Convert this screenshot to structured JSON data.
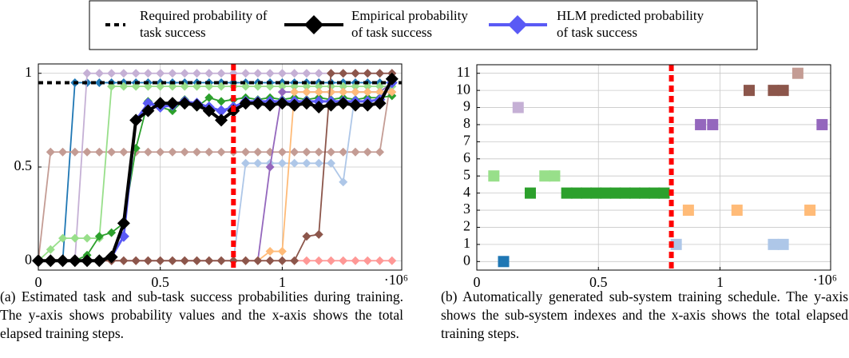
{
  "chart_data": [
    {
      "type": "line",
      "caption": "(a) Estimated task and sub-task success probabilities during training. The y-axis shows probability values and the x-axis shows the total elapsed training steps.",
      "x_multiplier": "·10⁶",
      "xlim": [
        0,
        1490000
      ],
      "ylim": [
        -0.05,
        1.05
      ],
      "xticks": [
        0,
        {
          "value": 500000,
          "label": "0.5"
        },
        {
          "value": 1000000,
          "label": "1"
        }
      ],
      "yticks": [
        0,
        0.5,
        1
      ],
      "grid": true,
      "vline": 800000,
      "vline_color": "#ff0000",
      "x": [
        0,
        50000,
        100000,
        150000,
        200000,
        250000,
        300000,
        350000,
        400000,
        450000,
        500000,
        550000,
        600000,
        650000,
        700000,
        750000,
        800000,
        850000,
        900000,
        950000,
        1000000,
        1050000,
        1100000,
        1150000,
        1200000,
        1250000,
        1300000,
        1350000,
        1400000,
        1450000
      ],
      "series": [
        {
          "name": "Required probability of task success",
          "color": "#000000",
          "linestyle": "dashed",
          "x": [
            0,
            1490000
          ],
          "values": [
            0.95,
            0.95
          ]
        },
        {
          "name": "Empirical probability of task success",
          "color": "#000000",
          "marker": "diamond",
          "values": [
            0,
            0,
            0,
            0,
            0,
            0,
            0.02,
            0.2,
            0.75,
            0.8,
            0.84,
            0.84,
            0.84,
            0.83,
            0.8,
            0.75,
            0.8,
            0.84,
            0.84,
            0.83,
            0.84,
            0.83,
            0.84,
            0.82,
            0.83,
            0.84,
            0.83,
            0.83,
            0.84,
            0.97
          ]
        },
        {
          "name": "HLM predicted probability of task success",
          "color": "#5a5af5",
          "marker": "diamond",
          "values": [
            0,
            0,
            0,
            0,
            0,
            0,
            0.02,
            0.13,
            0.75,
            0.84,
            0.82,
            0.83,
            0.85,
            0.84,
            0.82,
            0.8,
            0.82,
            0.85,
            0.85,
            0.85,
            0.85,
            0.85,
            0.85,
            0.85,
            0.85,
            0.85,
            0.85,
            0.85,
            0.86,
            0.95
          ]
        },
        {
          "color": "#ff9896",
          "marker": "diamond",
          "values": [
            0,
            0,
            0,
            0,
            0,
            0,
            0,
            0,
            0,
            0,
            0,
            0,
            0,
            0,
            0,
            0,
            0,
            0,
            0,
            0,
            0,
            0,
            0,
            0,
            0,
            0,
            0,
            0,
            0,
            0
          ]
        },
        {
          "color": "#1f77b4",
          "marker": "diamond",
          "values": [
            0,
            0,
            0,
            0.95,
            0.95,
            0.95,
            0.95,
            0.95,
            0.95,
            0.95,
            0.95,
            0.95,
            0.95,
            0.95,
            0.95,
            0.95,
            0.95,
            0.95,
            0.95,
            0.95,
            0.95,
            0.95,
            0.95,
            0.95,
            0.95,
            0.95,
            0.95,
            0.95,
            0.95,
            0.95
          ]
        },
        {
          "color": "#c49c94",
          "marker": "diamond",
          "values": [
            0,
            0.58,
            0.58,
            0.58,
            0.58,
            0.58,
            0.58,
            0.58,
            0.58,
            0.58,
            0.58,
            0.58,
            0.58,
            0.58,
            0.58,
            0.58,
            0.58,
            0.58,
            0.58,
            0.58,
            0.58,
            0.58,
            0.58,
            0.58,
            0.58,
            0.58,
            0.58,
            0.58,
            0.58,
            1
          ]
        },
        {
          "color": "#c5b0d5",
          "marker": "diamond",
          "values": [
            0,
            0,
            0,
            0,
            1,
            1,
            1,
            1,
            1,
            1,
            1,
            1,
            1,
            1,
            1,
            1,
            1,
            1,
            1,
            1,
            1,
            1,
            1,
            1,
            1,
            1,
            1,
            1,
            1,
            1
          ]
        },
        {
          "color": "#98df8a",
          "marker": "diamond",
          "values": [
            0,
            0.06,
            0.12,
            0.12,
            0.12,
            0.12,
            0.93,
            0.93,
            0.93,
            0.93,
            0.93,
            0.93,
            0.93,
            0.93,
            0.93,
            0.93,
            0.93,
            0.93,
            0.93,
            0.93,
            0.93,
            0.93,
            0.93,
            0.93,
            0.93,
            0.93,
            0.93,
            0.93,
            0.93,
            0.93
          ]
        },
        {
          "color": "#2ca02c",
          "marker": "diamond",
          "values": [
            0,
            0,
            0,
            0,
            0.03,
            0.13,
            0.15,
            0.2,
            0.6,
            0.85,
            0.82,
            0.8,
            0.86,
            0.82,
            0.87,
            0.85,
            0.86,
            0.87,
            0.86,
            0.87,
            0.86,
            0.87,
            0.86,
            0.87,
            0.86,
            0.87,
            0.86,
            0.87,
            0.87,
            0.88
          ]
        },
        {
          "color": "#aec7e8",
          "marker": "diamond",
          "values": [
            0,
            0,
            0,
            0,
            0,
            0,
            0,
            0,
            0,
            0,
            0,
            0,
            0,
            0,
            0,
            0,
            0,
            0.52,
            0.52,
            0.52,
            0.52,
            0.52,
            0.52,
            0.52,
            0.52,
            0.42,
            0.9,
            0.9,
            0.9,
            0.9
          ]
        },
        {
          "color": "#9467bd",
          "marker": "diamond",
          "values": [
            0,
            0,
            0,
            0,
            0,
            0,
            0,
            0,
            0,
            0,
            0,
            0,
            0,
            0,
            0,
            0,
            0,
            0,
            0,
            0.5,
            0.9,
            0.9,
            0.9,
            0.9,
            0.9,
            0.9,
            0.9,
            0.9,
            0.9,
            0.95
          ]
        },
        {
          "color": "#ffbb78",
          "marker": "diamond",
          "values": [
            0,
            0,
            0,
            0,
            0,
            0,
            0,
            0,
            0,
            0,
            0,
            0,
            0,
            0,
            0,
            0,
            0,
            0,
            0,
            0.05,
            0.05,
            0.9,
            0.9,
            0.9,
            0.9,
            0.9,
            0.9,
            0.9,
            0.9,
            0.9
          ]
        },
        {
          "color": "#8c564b",
          "marker": "diamond",
          "values": [
            0,
            0,
            0,
            0,
            0,
            0,
            0,
            0,
            0,
            0,
            0,
            0,
            0,
            0,
            0,
            0,
            0,
            0,
            0,
            0,
            0,
            0,
            0.13,
            0.14,
            1,
            1,
            1,
            1,
            1,
            1
          ]
        }
      ]
    },
    {
      "type": "scatter",
      "caption": "(b) Automatically generated sub-system training schedule. The y-axis shows the sub-system indexes and the x-axis shows the total elapsed training steps.",
      "x_multiplier": "·10⁶",
      "xlim": [
        0,
        1455000
      ],
      "ylim": [
        -0.5,
        11.5
      ],
      "xticks": [
        0,
        {
          "value": 500000,
          "label": "0.5"
        },
        {
          "value": 1000000,
          "label": "1"
        }
      ],
      "yticks": [
        0,
        1,
        2,
        3,
        4,
        5,
        6,
        7,
        8,
        9,
        10,
        11
      ],
      "grid": true,
      "vline": 800000,
      "vline_color": "#ff0000",
      "marker": "square",
      "series": [
        {
          "color": "#1f77b4",
          "x": [
            110000
          ],
          "values": [
            0
          ]
        },
        {
          "color": "#aec7e8",
          "x": [
            820000,
            1220000,
            1260000
          ],
          "values": [
            1,
            1,
            1
          ]
        },
        {
          "color": "#ffbb78",
          "x": [
            870000,
            1070000,
            1370000
          ],
          "values": [
            3,
            3,
            3
          ]
        },
        {
          "color": "#2ca02c",
          "x": [
            220000,
            370000,
            410000,
            450000,
            490000,
            530000,
            570000,
            610000,
            650000,
            690000,
            730000,
            770000
          ],
          "values": [
            4,
            4,
            4,
            4,
            4,
            4,
            4,
            4,
            4,
            4,
            4,
            4
          ]
        },
        {
          "color": "#98df8a",
          "x": [
            70000,
            280000,
            320000
          ],
          "values": [
            5,
            5,
            5
          ]
        },
        {
          "color": "#9467bd",
          "x": [
            920000,
            970000,
            1420000
          ],
          "values": [
            8,
            8,
            8
          ]
        },
        {
          "color": "#c5b0d5",
          "x": [
            170000
          ],
          "values": [
            9
          ]
        },
        {
          "color": "#8c564b",
          "x": [
            1120000,
            1220000,
            1260000
          ],
          "values": [
            10,
            10,
            10
          ]
        },
        {
          "color": "#c49c94",
          "x": [
            1320000
          ],
          "values": [
            11
          ]
        }
      ]
    }
  ]
}
